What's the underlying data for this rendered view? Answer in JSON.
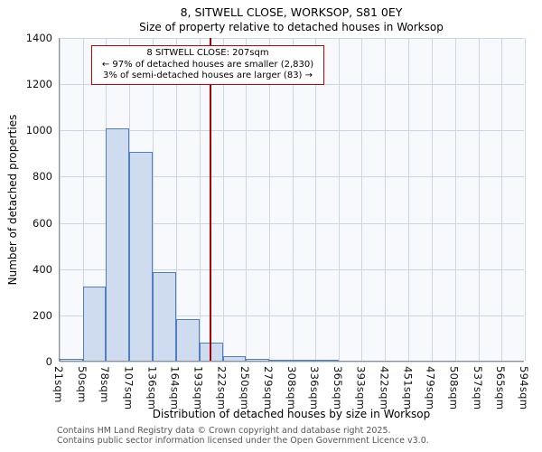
{
  "title_line1": "8, SITWELL CLOSE, WORKSOP, S81 0EY",
  "title_line2": "Size of property relative to detached houses in Worksop",
  "annotation": {
    "line1": "8 SITWELL CLOSE: 207sqm",
    "line2": "← 97% of detached houses are smaller (2,830)",
    "line3": "3% of semi-detached houses are larger (83) →"
  },
  "footer_line1": "Contains HM Land Registry data © Crown copyright and database right 2025.",
  "footer_line2": "Contains public sector information licensed under the Open Government Licence v3.0.",
  "chart_data": {
    "type": "bar",
    "title": "8, SITWELL CLOSE, WORKSOP, S81 0EY — Size of property relative to detached houses in Worksop",
    "xlabel": "Distribution of detached houses by size in Worksop",
    "ylabel": "Number of detached properties",
    "ylim": [
      0,
      1400
    ],
    "yticks": [
      0,
      200,
      400,
      600,
      800,
      1000,
      1200,
      1400
    ],
    "bin_edges": [
      21,
      50,
      78,
      107,
      136,
      164,
      193,
      222,
      250,
      279,
      308,
      336,
      365,
      393,
      422,
      451,
      479,
      508,
      537,
      565,
      594
    ],
    "xtick_labels": [
      "21sqm",
      "50sqm",
      "78sqm",
      "107sqm",
      "136sqm",
      "164sqm",
      "193sqm",
      "222sqm",
      "250sqm",
      "279sqm",
      "308sqm",
      "336sqm",
      "365sqm",
      "393sqm",
      "422sqm",
      "451sqm",
      "479sqm",
      "508sqm",
      "537sqm",
      "565sqm",
      "594sqm"
    ],
    "values": [
      8,
      320,
      1005,
      905,
      385,
      180,
      80,
      20,
      6,
      5,
      4,
      4,
      0,
      0,
      0,
      0,
      0,
      0,
      0,
      0
    ],
    "marker_value": 207,
    "marker_label": "8 SITWELL CLOSE: 207sqm",
    "grid": true,
    "legend": "none",
    "colors": {
      "bar_fill": "#cfdcef",
      "bar_border": "#4e7fc0",
      "marker_line": "#a00000",
      "annotation_border": "#cc0000",
      "grid_color": "#ccd5e6",
      "plot_background": "#f7f9fd"
    }
  }
}
